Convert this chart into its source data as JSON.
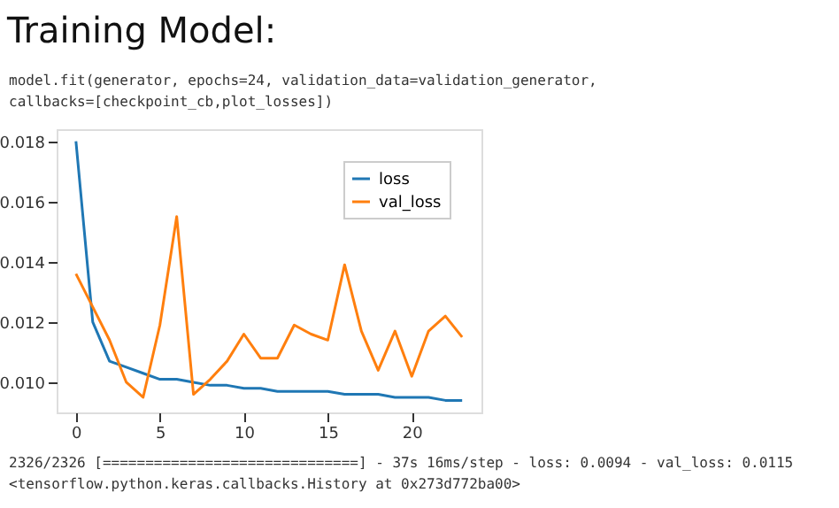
{
  "chart_data": {
    "type": "line",
    "title": "Training Model:",
    "annotations": [
      "model.fit(generator, epochs=24, validation_data=validation_generator,",
      "          callbacks=[checkpoint_cb,plot_losses])",
      "2326/2326 [==============================] - 37s 16ms/step - loss: 0.0094 - val_loss: 0.0115",
      "<tensorflow.python.keras.callbacks.History at 0x273d772ba00>"
    ],
    "x": [
      0,
      1,
      2,
      3,
      4,
      5,
      6,
      7,
      8,
      9,
      10,
      11,
      12,
      13,
      14,
      15,
      16,
      17,
      18,
      19,
      20,
      21,
      22,
      23
    ],
    "series": [
      {
        "name": "loss",
        "color": "#1f77b4",
        "values": [
          0.018,
          0.012,
          0.0107,
          0.0105,
          0.0103,
          0.0101,
          0.0101,
          0.01,
          0.0099,
          0.0099,
          0.0098,
          0.0098,
          0.0097,
          0.0097,
          0.0097,
          0.0097,
          0.0096,
          0.0096,
          0.0096,
          0.0095,
          0.0095,
          0.0095,
          0.0094,
          0.0094
        ]
      },
      {
        "name": "val_loss",
        "color": "#ff7f0e",
        "values": [
          0.0136,
          0.0125,
          0.0114,
          0.01,
          0.0095,
          0.0119,
          0.0155,
          0.0096,
          0.0101,
          0.0107,
          0.0116,
          0.0108,
          0.0108,
          0.0119,
          0.0116,
          0.0114,
          0.0139,
          0.0117,
          0.0104,
          0.0117,
          0.0102,
          0.0117,
          0.0122,
          0.0115
        ]
      }
    ],
    "xlim": [
      -1.15,
      24.15
    ],
    "xticks": [
      0,
      5,
      10,
      15,
      20
    ],
    "ylim": [
      0.009,
      0.0184
    ],
    "yticks": [
      {
        "value": 0.01,
        "label": "0.010"
      },
      {
        "value": 0.012,
        "label": "0.012"
      },
      {
        "value": 0.014,
        "label": "0.014"
      },
      {
        "value": 0.016,
        "label": "0.016"
      },
      {
        "value": 0.018,
        "label": "0.018"
      }
    ],
    "grid": false,
    "legend": "top right",
    "marker": "none",
    "line_style": "solid"
  }
}
